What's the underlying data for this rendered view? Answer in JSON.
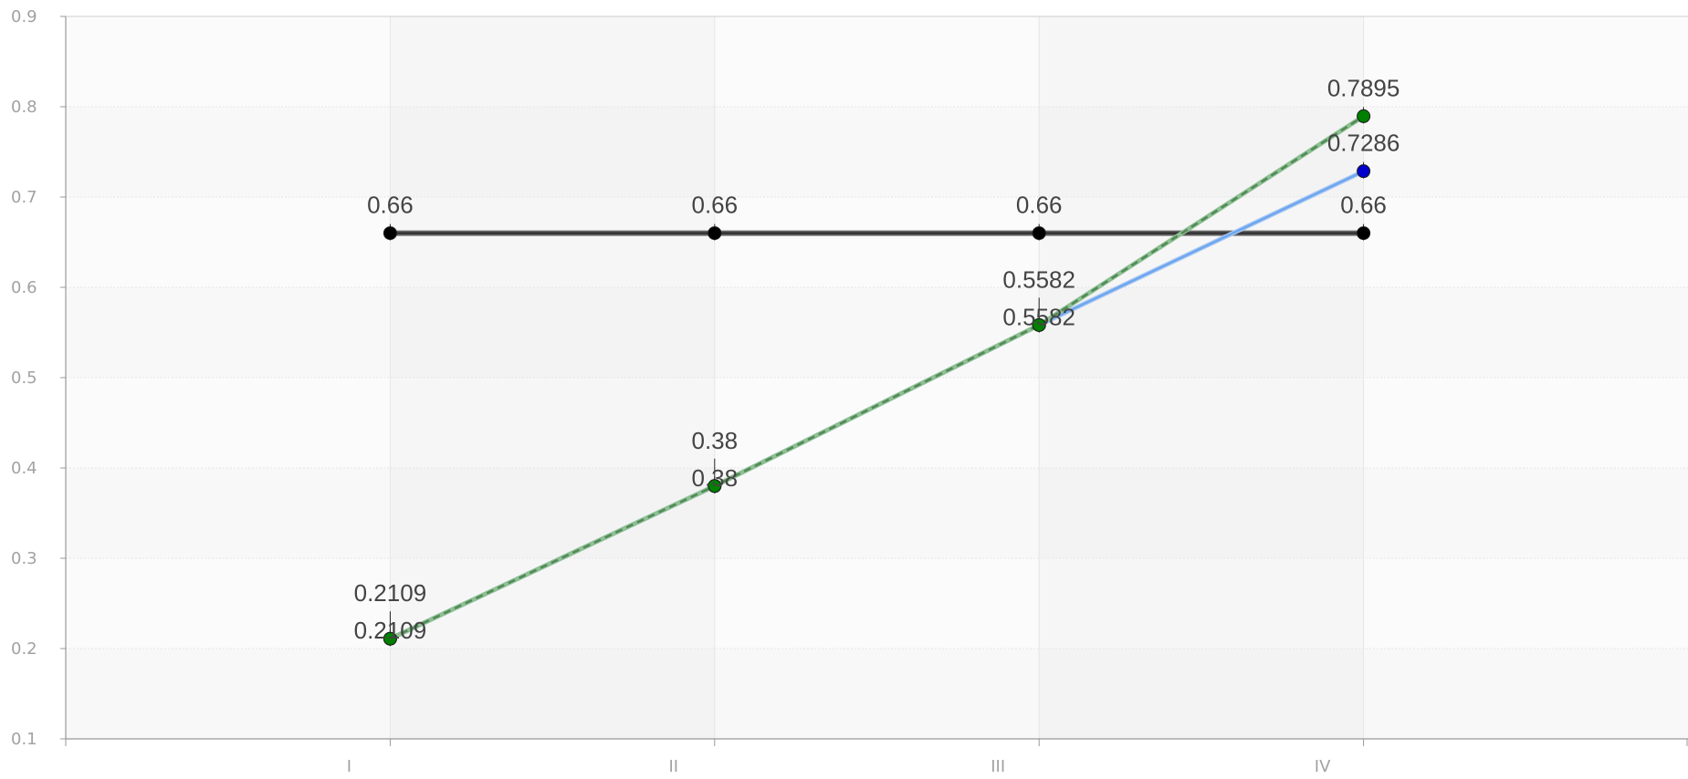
{
  "chart_data": {
    "type": "line",
    "title": "",
    "xlabel": "",
    "ylabel": "",
    "categories": [
      "I",
      "II",
      "III",
      "IV"
    ],
    "ylim": [
      0.1,
      0.9
    ],
    "yticks": [
      "0.1",
      "0.2",
      "0.3",
      "0.4",
      "0.5",
      "0.6",
      "0.7",
      "0.8",
      "0.9"
    ],
    "grid": true,
    "legend": "none",
    "series": [
      {
        "values": [
          0.66,
          0.66,
          0.66,
          0.66
        ],
        "labels": [
          "0.66",
          "0.66",
          "0.66",
          "0.66"
        ],
        "color": "#333333",
        "marker_color": "#000000",
        "style": "solid"
      },
      {
        "values": [
          0.2109,
          0.38,
          0.5582,
          0.7286
        ],
        "labels": [
          "0.2109",
          "0.38",
          "0.5582",
          "0.7286"
        ],
        "color": "#6ea6ee",
        "marker_color": "#0000cc",
        "style": "solid"
      },
      {
        "values": [
          0.2109,
          0.38,
          0.5582,
          0.7895
        ],
        "labels": [
          "0.2109",
          "0.38",
          "0.5582",
          "0.7895"
        ],
        "color": "#4f8a55",
        "marker_color": "#008000",
        "style": "dashed"
      }
    ]
  }
}
